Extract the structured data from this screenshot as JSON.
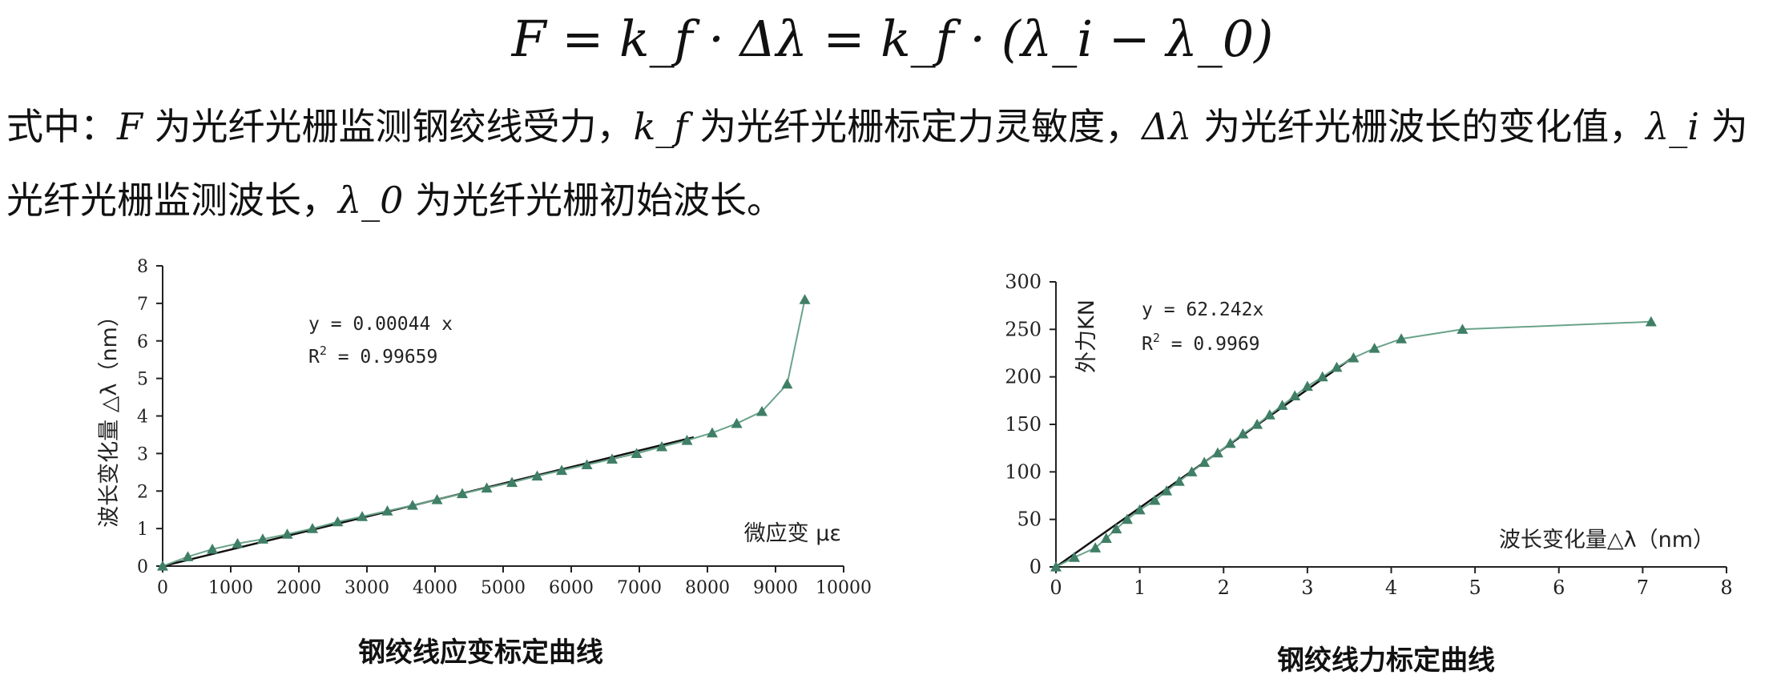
{
  "formula": "F = k_f · Δλ = k_f · (λ_i − λ_0)",
  "explanation": {
    "line1": [
      "式中：",
      "F",
      " 为光纤光栅监测钢绞线受力，",
      "k_f",
      " 为光纤光栅标定力灵敏度，",
      "Δλ",
      " 为光纤光栅波长的变化值，",
      "λ_i",
      " 为"
    ],
    "line2": [
      "光纤光栅监测波长，",
      "λ_0",
      " 为光纤光栅初始波长。"
    ]
  },
  "colors": {
    "marker": "#3f7f66",
    "curve": "#6aa38a",
    "fit": "#111111",
    "axis": "#222222"
  },
  "chart_data": [
    {
      "type": "scatter",
      "title": "钢绞线应变标定曲线",
      "xlabel": "微应变 με",
      "ylabel": "波长变化量 △λ（nm）",
      "xlim": [
        0,
        10000
      ],
      "ylim": [
        0,
        8
      ],
      "xticks": [
        "0",
        "1000",
        "2000",
        "3000",
        "4000",
        "5000",
        "6000",
        "7000",
        "8000",
        "9000",
        "10000"
      ],
      "yticks": [
        "0",
        "1",
        "2",
        "3",
        "4",
        "5",
        "6",
        "7",
        "8"
      ],
      "grid": false,
      "annotation": {
        "equation": "y = 0.00044 x",
        "r2_label": "R",
        "r2_sup": "2",
        "r2_value": " = 0.99659"
      },
      "fit": {
        "slope": 0.00044,
        "x_range": [
          0,
          7800
        ]
      },
      "points": {
        "x": [
          0,
          370,
          730,
          1100,
          1470,
          1830,
          2200,
          2570,
          2930,
          3300,
          3670,
          4030,
          4400,
          4760,
          5130,
          5500,
          5860,
          6230,
          6600,
          6960,
          7330,
          7700,
          8070,
          8430,
          8800,
          9170,
          9430
        ],
        "y": [
          0,
          0.25,
          0.45,
          0.6,
          0.72,
          0.85,
          1.0,
          1.18,
          1.32,
          1.47,
          1.62,
          1.77,
          1.93,
          2.08,
          2.23,
          2.4,
          2.55,
          2.7,
          2.85,
          3.0,
          3.18,
          3.35,
          3.55,
          3.8,
          4.12,
          4.85,
          7.1
        ]
      }
    },
    {
      "type": "scatter",
      "title": "钢绞线力标定曲线",
      "xlabel": "波长变化量△λ（nm）",
      "ylabel": "外力KN",
      "xlim": [
        0,
        8
      ],
      "ylim": [
        0,
        300
      ],
      "xticks": [
        "0",
        "1",
        "2",
        "3",
        "4",
        "5",
        "6",
        "7",
        "8"
      ],
      "yticks": [
        "0",
        "50",
        "100",
        "150",
        "200",
        "250",
        "300"
      ],
      "grid": false,
      "annotation": {
        "equation": "y = 62.242x",
        "r2_label": "R",
        "r2_sup": "2",
        "r2_value": " = 0.9969"
      },
      "fit": {
        "slope": 62.242,
        "x_range": [
          0,
          3.55
        ]
      },
      "points": {
        "x": [
          0,
          0.22,
          0.47,
          0.6,
          0.72,
          0.85,
          1.0,
          1.18,
          1.32,
          1.47,
          1.62,
          1.77,
          1.93,
          2.08,
          2.23,
          2.4,
          2.55,
          2.7,
          2.85,
          3.0,
          3.18,
          3.35,
          3.55,
          3.8,
          4.12,
          4.85,
          7.1
        ],
        "y": [
          0,
          10,
          20,
          30,
          40,
          50,
          60,
          70,
          80,
          90,
          100,
          110,
          120,
          130,
          140,
          150,
          160,
          170,
          180,
          190,
          200,
          210,
          220,
          230,
          240,
          250,
          258
        ]
      }
    }
  ]
}
